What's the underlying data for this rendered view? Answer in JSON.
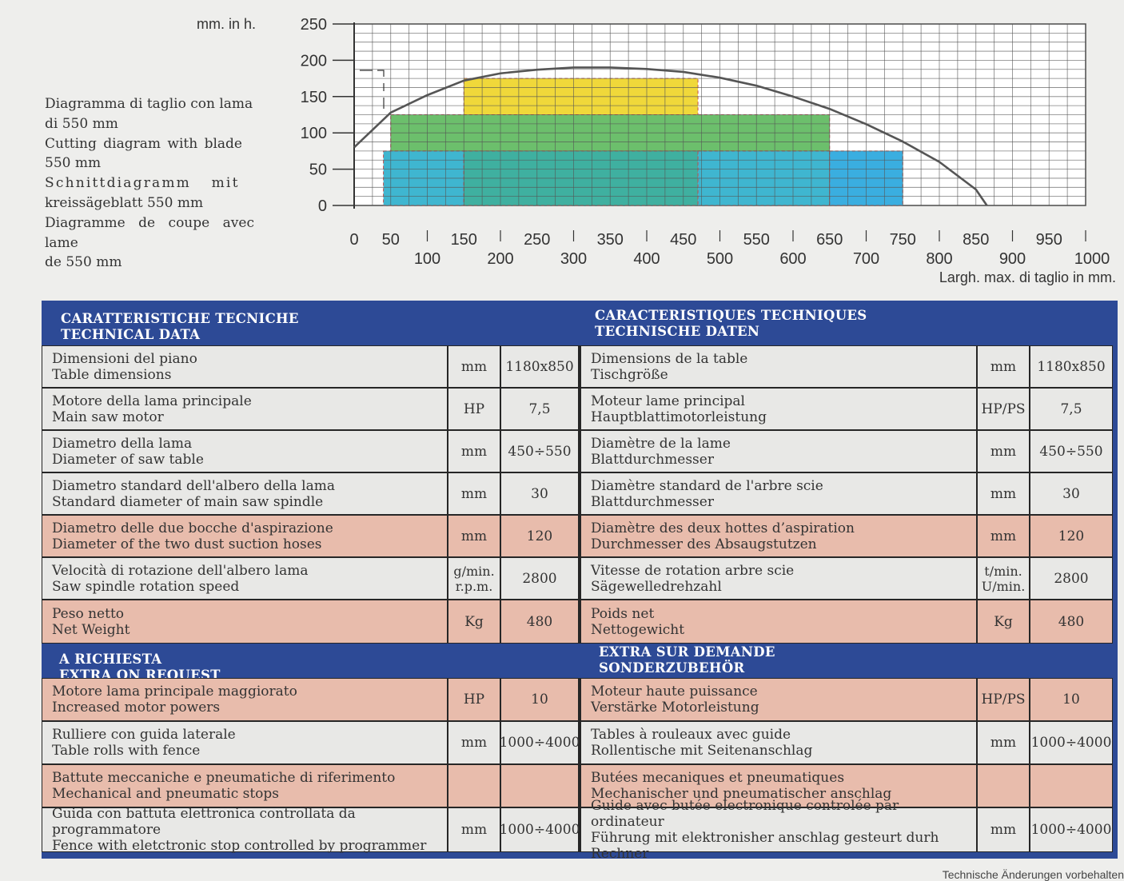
{
  "chart": {
    "units_label": "mm. in h.",
    "description": [
      "Diagramma di taglio con lama",
      "di 550 mm",
      "Cutting diagram with blade",
      "550 mm",
      "Schnittdiagramm mit",
      "kreissägeblatt 550 mm",
      "Diagramme de coupe avec lame",
      "de 550 mm"
    ],
    "x_axis_label": "Largh. max. di taglio in mm."
  },
  "chart_data": {
    "type": "area",
    "title": "",
    "ylabel": "mm. in h.",
    "xlabel": "Largh. max. di taglio in mm.",
    "ylim": [
      0,
      250
    ],
    "xlim": [
      0,
      1000
    ],
    "yticks": [
      0,
      50,
      100,
      150,
      200,
      250
    ],
    "xticks_upper": [
      0,
      50,
      150,
      250,
      350,
      450,
      550,
      650,
      750,
      850,
      950
    ],
    "xticks_lower": [
      100,
      200,
      300,
      400,
      500,
      600,
      700,
      800,
      900,
      1000
    ],
    "grid": true,
    "blocks": [
      {
        "color": "#f0d83a",
        "x": [
          150,
          470
        ],
        "y": [
          120,
          175
        ]
      },
      {
        "color": "#6cbf6c",
        "x": [
          50,
          650
        ],
        "y": [
          75,
          125
        ]
      },
      {
        "color": "#3fb6d0",
        "x": [
          40,
          150
        ],
        "y": [
          0,
          75
        ]
      },
      {
        "color": "#3fb0a0",
        "x": [
          150,
          470
        ],
        "y": [
          0,
          75
        ]
      },
      {
        "color": "#3fb6d0",
        "x": [
          470,
          650
        ],
        "y": [
          0,
          75
        ]
      },
      {
        "color": "#3aaee0",
        "x": [
          650,
          750
        ],
        "y": [
          0,
          75
        ]
      }
    ],
    "curve": [
      [
        0,
        80
      ],
      [
        50,
        128
      ],
      [
        100,
        152
      ],
      [
        150,
        172
      ],
      [
        200,
        182
      ],
      [
        250,
        187
      ],
      [
        300,
        190
      ],
      [
        350,
        190
      ],
      [
        400,
        188
      ],
      [
        450,
        184
      ],
      [
        500,
        176
      ],
      [
        550,
        165
      ],
      [
        600,
        150
      ],
      [
        650,
        133
      ],
      [
        700,
        112
      ],
      [
        750,
        88
      ],
      [
        800,
        60
      ],
      [
        850,
        22
      ],
      [
        865,
        0
      ]
    ]
  },
  "section1": {
    "left_title": [
      "CARATTERISTICHE TECNICHE",
      "TECHNICAL DATA"
    ],
    "right_title": [
      "CARACTERISTIQUES TECHNIQUES",
      "TECHNISCHE DATEN"
    ]
  },
  "rows1": [
    {
      "it": "Dimensioni del piano",
      "en": "Table dimensions",
      "u": "mm",
      "v": "1180x850",
      "fr": "Dimensions de la table",
      "de": "Tischgröße",
      "u2": "mm",
      "v2": "1180x850",
      "style": "grey"
    },
    {
      "it": "Motore della lama principale",
      "en": "Main saw motor",
      "u": "HP",
      "v": "7,5",
      "fr": "Moteur lame principal",
      "de": "Hauptblattimotorleistung",
      "u2": "HP/PS",
      "v2": "7,5",
      "style": "grey"
    },
    {
      "it": "Diametro della lama",
      "en": "Diameter of saw table",
      "u": "mm",
      "v": "450÷550",
      "fr": "Diamètre de la lame",
      "de": "Blattdurchmesser",
      "u2": "mm",
      "v2": "450÷550",
      "style": "grey"
    },
    {
      "it": "Diametro standard dell'albero della lama",
      "en": "Standard diameter of main saw spindle",
      "u": "mm",
      "v": "30",
      "fr": "Diamètre standard de l'arbre scie",
      "de": "Blattdurchmesser",
      "u2": "mm",
      "v2": "30",
      "style": "grey"
    },
    {
      "it": "Diametro delle due bocche d'aspirazione",
      "en": "Diameter of the two dust suction hoses",
      "u": "mm",
      "v": "120",
      "fr": "Diamètre des deux hottes d’aspiration",
      "de": "Durchmesser des Absaugstutzen",
      "u2": "mm",
      "v2": "120",
      "style": "pink"
    },
    {
      "it": "Velocità di rotazione dell'albero lama",
      "en": "Saw spindle rotation speed",
      "u": "g/min.",
      "ub": "r.p.m.",
      "v": "2800",
      "fr": "Vitesse de rotation arbre scie",
      "de": "Sägewelledrehzahl",
      "u2": "t/min.",
      "u2b": "U/min.",
      "v2": "2800",
      "style": "grey"
    },
    {
      "it": "Peso netto",
      "en": "Net Weight",
      "u": "Kg",
      "v": "480",
      "fr": "Poids net",
      "de": "Nettogewicht",
      "u2": "Kg",
      "v2": "480",
      "style": "pink"
    }
  ],
  "section2": {
    "left_title": [
      "A RICHIESTA",
      "EXTRA ON REQUEST"
    ],
    "right_title": [
      "EXTRA SUR DEMANDE",
      "SONDERZUBEHÖR"
    ]
  },
  "rows2": [
    {
      "it": "Motore lama principale maggiorato",
      "en": "Increased motor powers",
      "u": "HP",
      "v": "10",
      "fr": "Moteur haute puissance",
      "de": "Verstärke Motorleistung",
      "u2": "HP/PS",
      "v2": "10",
      "style": "pink"
    },
    {
      "it": "Rulliere con guida laterale",
      "en": "Table rolls with fence",
      "u": "mm",
      "v": "1000÷4000",
      "fr": "Tables à rouleaux avec guide",
      "de": "Rollentische mit Seitenanschlag",
      "u2": "mm",
      "v2": "1000÷4000",
      "style": "grey"
    },
    {
      "it": "Battute meccaniche e pneumatiche di riferimento",
      "en": "Mechanical and pneumatic stops",
      "u": "",
      "v": "",
      "fr": "Butées mecaniques et pneumatiques",
      "de": "Mechanischer und pneumatischer anschlag",
      "u2": "",
      "v2": "",
      "style": "pink"
    },
    {
      "it": "Guida con battuta elettronica controllata da programmatore",
      "en": "Fence with eletctronic stop controlled by programmer",
      "u": "mm",
      "v": "1000÷4000",
      "fr": "Guide avec butée electronique controlée par ordinateur",
      "de": "Führung mit elektronisher anschlag gesteurt durh Rechner",
      "u2": "mm",
      "v2": "1000÷4000",
      "style": "grey"
    }
  ],
  "footer": "Technische Änderungen vorbehalten"
}
